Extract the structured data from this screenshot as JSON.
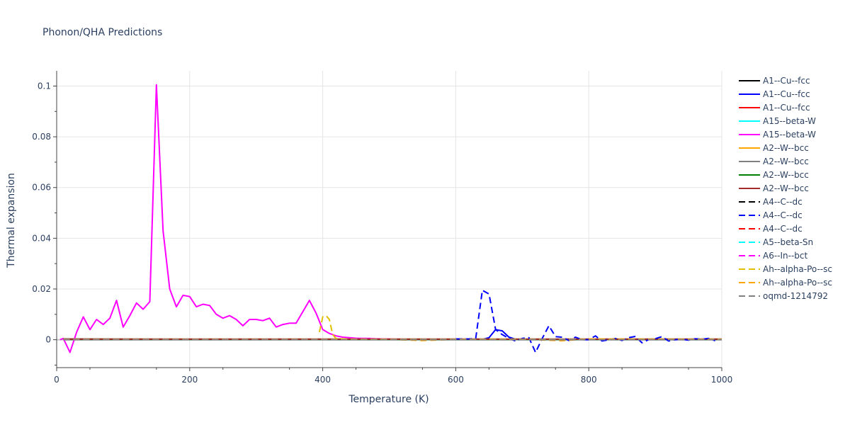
{
  "chart_data": {
    "type": "line",
    "title": "Phonon/QHA Predictions",
    "xlabel": "Temperature (K)",
    "ylabel": "Thermal expansion",
    "xlim": [
      0,
      1000
    ],
    "ylim": [
      -0.011,
      0.106
    ],
    "xticks": [
      0,
      200,
      400,
      600,
      800,
      1000
    ],
    "xtick_labels": [
      "0",
      "200",
      "400",
      "600",
      "800",
      "1000"
    ],
    "yticks": [
      0,
      0.02,
      0.04,
      0.06,
      0.08,
      0.1
    ],
    "ytick_labels": [
      "0",
      "0.02",
      "0.04",
      "0.06",
      "0.08",
      "0.1"
    ],
    "grid": true,
    "legend_position": "right",
    "series": [
      {
        "name": "A1--Cu--fcc",
        "color": "#000000",
        "dash": "solid",
        "x": [
          10,
          100,
          200,
          300,
          400,
          500,
          600,
          700,
          800,
          900,
          1000
        ],
        "y": [
          0.0003,
          0.00025,
          0.0002,
          0.0002,
          0.0002,
          0.0002,
          0.0002,
          0.0002,
          0.0002,
          0.0002,
          0.0002
        ]
      },
      {
        "name": "A1--Cu--fcc",
        "color": "#0000ff",
        "dash": "solid",
        "x": [
          10,
          100,
          200,
          300,
          400,
          500,
          600,
          640,
          650,
          660,
          670,
          680,
          690,
          700,
          1000
        ],
        "y": [
          0.0001,
          0.0001,
          0.0001,
          0.0001,
          0.0001,
          0.0001,
          0.0001,
          0.0001,
          0.0008,
          0.004,
          0.0035,
          0.001,
          0.0002,
          0.0001,
          0.0001
        ]
      },
      {
        "name": "A1--Cu--fcc",
        "color": "#ff0000",
        "dash": "solid",
        "x": [
          10,
          200,
          400,
          600,
          800,
          1000
        ],
        "y": [
          0.0001,
          0.0001,
          0.0001,
          0.0001,
          0.0001,
          0.0001
        ]
      },
      {
        "name": "A15--beta-W",
        "color": "#00ffff",
        "dash": "solid",
        "x": [
          10,
          200,
          400,
          600,
          800,
          1000
        ],
        "y": [
          0.0001,
          0.0001,
          0.0001,
          0.0001,
          0.0001,
          0.0001
        ]
      },
      {
        "name": "A15--beta-W",
        "color": "#ff00ff",
        "dash": "solid",
        "x": [
          5,
          10,
          20,
          30,
          40,
          50,
          60,
          70,
          80,
          90,
          100,
          110,
          120,
          130,
          140,
          150,
          160,
          170,
          180,
          190,
          200,
          210,
          220,
          230,
          240,
          250,
          260,
          270,
          280,
          290,
          300,
          310,
          320,
          330,
          340,
          350,
          360,
          370,
          380,
          390,
          400,
          410,
          420,
          430,
          440,
          450,
          460,
          470,
          480,
          490,
          500,
          510,
          520
        ],
        "y": [
          0.0,
          0.0005,
          -0.005,
          0.003,
          0.009,
          0.004,
          0.008,
          0.006,
          0.0085,
          0.0155,
          0.005,
          0.0095,
          0.0145,
          0.012,
          0.015,
          0.1005,
          0.043,
          0.02,
          0.013,
          0.0175,
          0.017,
          0.013,
          0.014,
          0.0135,
          0.01,
          0.0085,
          0.0095,
          0.008,
          0.0055,
          0.008,
          0.008,
          0.0075,
          0.0085,
          0.005,
          0.006,
          0.0065,
          0.0065,
          0.011,
          0.0155,
          0.0105,
          0.004,
          0.0025,
          0.0015,
          0.001,
          0.0008,
          0.0006,
          0.0005,
          0.0005,
          0.0004,
          0.0003,
          0.0003,
          0.0002,
          0.0002
        ]
      },
      {
        "name": "A2--W--bcc",
        "color": "#ffa500",
        "dash": "solid",
        "x": [
          10,
          200,
          400,
          600,
          800,
          1000
        ],
        "y": [
          0.0002,
          0.0002,
          0.0002,
          0.0002,
          0.0002,
          0.0002
        ]
      },
      {
        "name": "A2--W--bcc",
        "color": "#808080",
        "dash": "solid",
        "x": [
          10,
          200,
          400,
          600,
          800,
          1000
        ],
        "y": [
          0.0002,
          0.0002,
          0.0002,
          0.0002,
          0.0002,
          0.0002
        ]
      },
      {
        "name": "A2--W--bcc",
        "color": "#008000",
        "dash": "solid",
        "x": [
          10,
          200,
          400,
          600,
          800,
          1000
        ],
        "y": [
          0.0001,
          0.0001,
          0.0001,
          0.0001,
          0.0001,
          0.0001
        ]
      },
      {
        "name": "A2--W--bcc",
        "color": "#a52a2a",
        "dash": "solid",
        "x": [
          10,
          100,
          200,
          300,
          400,
          500,
          600,
          700,
          800,
          900,
          1000
        ],
        "y": [
          0.0002,
          0.0002,
          0.0002,
          0.0002,
          0.0002,
          0.0002,
          0.0002,
          0.0002,
          0.0002,
          0.0002,
          0.0002
        ]
      },
      {
        "name": "A4--C--dc",
        "color": "#000000",
        "dash": "dash",
        "x": [
          10,
          200,
          400,
          600,
          800,
          1000
        ],
        "y": [
          0.0001,
          0.0001,
          0.0001,
          0.0001,
          0.0001,
          0.0001
        ]
      },
      {
        "name": "A4--C--dc",
        "color": "#0000ff",
        "dash": "dash",
        "x": [
          600,
          620,
          630,
          640,
          650,
          660,
          670,
          680,
          690,
          700,
          710,
          720,
          730,
          740,
          750,
          760,
          770,
          780,
          790,
          800,
          810,
          820,
          830,
          840,
          850,
          860,
          870,
          880,
          890,
          900,
          910,
          920,
          930,
          940,
          950,
          960,
          970,
          980,
          990
        ],
        "y": [
          0.0003,
          0.0003,
          0.0005,
          0.0195,
          0.018,
          0.004,
          0.002,
          0.0005,
          -0.0005,
          0.0005,
          0.0008,
          -0.005,
          0.0005,
          0.0055,
          0.0012,
          0.001,
          -0.0003,
          0.001,
          0.0,
          0.0,
          0.0015,
          -0.0005,
          0.0,
          0.0005,
          -0.0003,
          0.0008,
          0.0013,
          -0.0012,
          0.0,
          0.0004,
          0.0012,
          -0.0005,
          0.0,
          0.0002,
          -0.0002,
          0.0004,
          0.0002,
          0.0005,
          -0.0004
        ]
      },
      {
        "name": "A4--C--dc",
        "color": "#ff0000",
        "dash": "dash",
        "x": [
          10,
          200,
          400,
          600,
          800,
          1000
        ],
        "y": [
          0.0001,
          0.0001,
          0.0001,
          0.0001,
          0.0001,
          0.0001
        ]
      },
      {
        "name": "A5--beta-Sn",
        "color": "#00ffff",
        "dash": "dash",
        "x": [
          10,
          200,
          400,
          600,
          800,
          1000
        ],
        "y": [
          0.0001,
          0.0001,
          0.0001,
          0.0001,
          0.0001,
          0.0001
        ]
      },
      {
        "name": "A6--In--bct",
        "color": "#ff00ff",
        "dash": "dash",
        "x": [
          10,
          200,
          400,
          600,
          800,
          1000
        ],
        "y": [
          0.0001,
          0.0001,
          0.0001,
          0.0001,
          0.0001,
          0.0001
        ]
      },
      {
        "name": "Ah--alpha-Po--sc",
        "color": "#e0c000",
        "dash": "dash",
        "x": [
          395,
          400,
          405,
          410,
          415,
          420,
          440,
          500,
          600,
          700,
          800,
          900,
          1000
        ],
        "y": [
          0.003,
          0.009,
          0.0095,
          0.008,
          0.002,
          0.0005,
          0.0002,
          0.0001,
          0.0001,
          0.0001,
          0.0001,
          0.0001,
          0.0001
        ]
      },
      {
        "name": "Ah--alpha-Po--sc",
        "color": "#ffa500",
        "dash": "dash",
        "x": [
          10,
          100,
          200,
          300,
          400,
          500,
          550,
          600,
          700,
          760,
          800,
          900,
          1000
        ],
        "y": [
          0.0001,
          0.0001,
          0.0001,
          0.0001,
          0.0001,
          0.0001,
          -0.0003,
          0.0001,
          0.0002,
          -0.0004,
          0.0003,
          0.0002,
          0.0001
        ]
      },
      {
        "name": "oqmd-1214792",
        "color": "#808080",
        "dash": "dash",
        "x": [
          10,
          200,
          400,
          600,
          800,
          1000
        ],
        "y": [
          0.0,
          0.0,
          0.0,
          0.0,
          0.0,
          0.0
        ]
      }
    ]
  }
}
